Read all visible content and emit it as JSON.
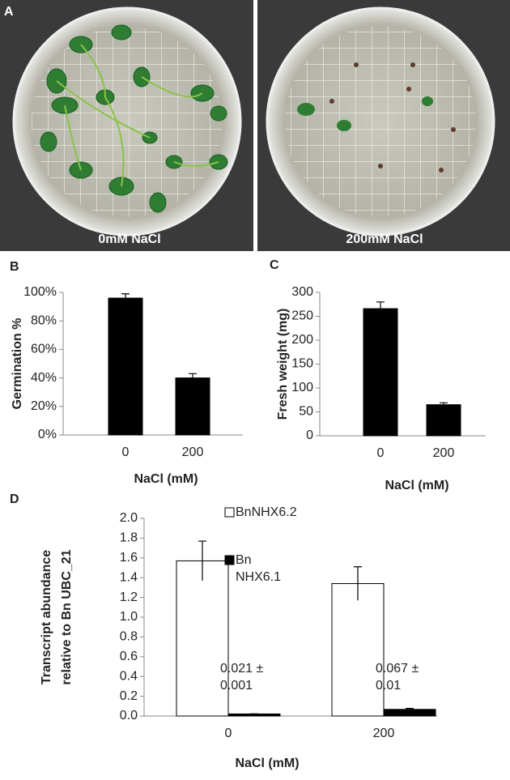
{
  "figure": {
    "panel_labels": [
      "A",
      "B",
      "C",
      "D"
    ],
    "photo_captions": [
      "0mM NaCl",
      "200mM NaCl"
    ]
  },
  "chart_data": [
    {
      "type": "bar",
      "ylabel": "Germination %",
      "xlabel": "NaCl (mM)",
      "categories": [
        "0",
        "200"
      ],
      "values": [
        96,
        40
      ],
      "errors": [
        3,
        3
      ],
      "color": "#000000",
      "ylim": [
        0,
        100
      ],
      "yticks": [
        {
          "value": 0,
          "label": "0%"
        },
        {
          "value": 20,
          "label": "20%"
        },
        {
          "value": 40,
          "label": "40%"
        },
        {
          "value": 60,
          "label": "60%"
        },
        {
          "value": 80,
          "label": "80%"
        },
        {
          "value": 100,
          "label": "100%"
        }
      ]
    },
    {
      "type": "bar",
      "ylabel": "Fresh weight (mg)",
      "xlabel": "NaCl (mM)",
      "categories": [
        "0",
        "200"
      ],
      "values": [
        266,
        65
      ],
      "errors": [
        14,
        4
      ],
      "color": "#000000",
      "ylim": [
        0,
        300
      ],
      "yticks": [
        0,
        50,
        100,
        150,
        200,
        250,
        300
      ]
    },
    {
      "type": "bar",
      "ylabel": [
        "Transcript abundance",
        "relative to Bn UBC_21"
      ],
      "xlabel": "NaCl (mM)",
      "categories": [
        "0",
        "200"
      ],
      "series": [
        {
          "name": "BnNHX6.2",
          "color": "#ffffff",
          "values": [
            1.57,
            1.34
          ],
          "errors": [
            0.2,
            0.17
          ]
        },
        {
          "name": "Bn NHX6.1",
          "color": "#000000",
          "values": [
            0.021,
            0.067
          ],
          "errors": [
            0.001,
            0.01
          ],
          "value_labels": [
            "0.021 ± 0.001",
            "0.067 ± 0.01"
          ]
        }
      ],
      "ylim": [
        0,
        2
      ],
      "yticks": [
        {
          "value": 0,
          "label": "0.0"
        },
        0.2,
        0.4,
        0.6,
        0.8,
        {
          "value": 1,
          "label": "1.0"
        },
        1.2,
        1.4,
        1.6,
        1.8,
        {
          "value": 2,
          "label": "2.0"
        }
      ]
    }
  ]
}
